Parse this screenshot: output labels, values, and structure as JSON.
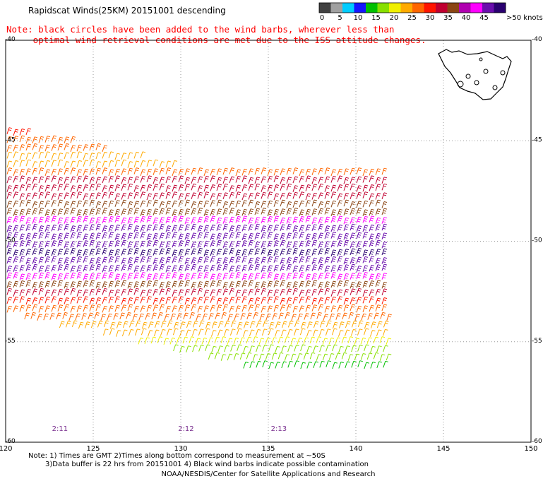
{
  "header": {
    "title": "Rapidscat Winds(25KM) 20151001 descending",
    "note_line1": "Note: black circles have been added to the wind barbs, wherever less than",
    "note_line2": "     optimal wind retrieval conditions are met due to the ISS attitude changes."
  },
  "legend": {
    "unit_label": ">50 knots",
    "ticks": [
      "0",
      "5",
      "10",
      "15",
      "20",
      "25",
      "30",
      "35",
      "40",
      "45"
    ],
    "colors": [
      "#404040",
      "#a0a0a0",
      "#00ccff",
      "#1515ff",
      "#00c000",
      "#88e000",
      "#f0f000",
      "#ffaa00",
      "#ff6600",
      "#ff1500",
      "#c00030",
      "#8b4513",
      "#b000b0",
      "#ff00ff",
      "#6a0dad",
      "#2a0070"
    ]
  },
  "footer": {
    "note_line1": "Note: 1) Times are GMT 2)Times along bottom correspond to measurement at ~50S",
    "note_line2": "3)Data buffer is 22 hrs from 20151001 4) Black wind barbs indicate possible contamination",
    "credit": "NOAA/NESDIS/Center for Satellite Applications and Research"
  },
  "chart_data": {
    "type": "scatter",
    "title": "Rapidscat Winds(25KM) 20151001 descending",
    "xlabel": "",
    "ylabel": "",
    "xlim": [
      120,
      150
    ],
    "ylim": [
      -60,
      -40
    ],
    "x_ticks": [
      "120",
      "125",
      "130",
      "135",
      "140",
      "145",
      "150"
    ],
    "y_ticks": [
      "-40",
      "-45",
      "-50",
      "-55",
      "-60"
    ],
    "grid": "dotted",
    "time_labels": [
      {
        "text": "2:11",
        "x": 123.1
      },
      {
        "text": "2:12",
        "x": 130.3
      },
      {
        "text": "2:13",
        "x": 135.6
      }
    ],
    "color_scale_knots": [
      0,
      5,
      10,
      15,
      20,
      25,
      30,
      35,
      40,
      45,
      50
    ],
    "swath_bands": [
      {
        "lat": -44.6,
        "lon_start": 120.0,
        "lon_end": 121.5,
        "speed": 30
      },
      {
        "lat": -45.0,
        "lon_start": 120.0,
        "lon_end": 124.0,
        "speed": 25
      },
      {
        "lat": -45.4,
        "lon_start": 120.0,
        "lon_end": 126.0,
        "speed": 25
      },
      {
        "lat": -45.8,
        "lon_start": 120.0,
        "lon_end": 128.0,
        "speed": 22
      },
      {
        "lat": -46.2,
        "lon_start": 120.0,
        "lon_end": 129.8,
        "speed": 22
      },
      {
        "lat": -46.6,
        "lon_start": 120.0,
        "lon_end": 142.0,
        "speed": 28
      },
      {
        "lat": -47.0,
        "lon_start": 120.0,
        "lon_end": 142.0,
        "speed": 33
      },
      {
        "lat": -47.4,
        "lon_start": 120.0,
        "lon_end": 142.0,
        "speed": 34
      },
      {
        "lat": -47.8,
        "lon_start": 120.0,
        "lon_end": 142.0,
        "speed": 34
      },
      {
        "lat": -48.2,
        "lon_start": 120.0,
        "lon_end": 142.0,
        "speed": 36
      },
      {
        "lat": -48.6,
        "lon_start": 120.0,
        "lon_end": 142.0,
        "speed": 38
      },
      {
        "lat": -49.0,
        "lon_start": 120.0,
        "lon_end": 142.0,
        "speed": 42
      },
      {
        "lat": -49.4,
        "lon_start": 120.0,
        "lon_end": 142.0,
        "speed": 46
      },
      {
        "lat": -49.8,
        "lon_start": 120.0,
        "lon_end": 142.0,
        "speed": 46
      },
      {
        "lat": -50.2,
        "lon_start": 120.0,
        "lon_end": 142.0,
        "speed": 48
      },
      {
        "lat": -50.6,
        "lon_start": 120.0,
        "lon_end": 142.0,
        "speed": 50
      },
      {
        "lat": -51.0,
        "lon_start": 120.0,
        "lon_end": 142.0,
        "speed": 48
      },
      {
        "lat": -51.4,
        "lon_start": 120.0,
        "lon_end": 142.0,
        "speed": 46
      },
      {
        "lat": -51.8,
        "lon_start": 120.0,
        "lon_end": 142.0,
        "speed": 42
      },
      {
        "lat": -52.2,
        "lon_start": 120.0,
        "lon_end": 142.0,
        "speed": 38
      },
      {
        "lat": -52.6,
        "lon_start": 120.0,
        "lon_end": 142.0,
        "speed": 34
      },
      {
        "lat": -53.0,
        "lon_start": 120.0,
        "lon_end": 142.0,
        "speed": 30
      },
      {
        "lat": -53.4,
        "lon_start": 120.0,
        "lon_end": 142.0,
        "speed": 28
      },
      {
        "lat": -53.8,
        "lon_start": 121.0,
        "lon_end": 142.0,
        "speed": 26
      },
      {
        "lat": -54.2,
        "lon_start": 123.0,
        "lon_end": 142.0,
        "speed": 24
      },
      {
        "lat": -54.6,
        "lon_start": 125.5,
        "lon_end": 142.0,
        "speed": 22
      },
      {
        "lat": -55.0,
        "lon_start": 127.5,
        "lon_end": 142.0,
        "speed": 20
      },
      {
        "lat": -55.4,
        "lon_start": 129.5,
        "lon_end": 142.0,
        "speed": 18
      },
      {
        "lat": -55.8,
        "lon_start": 131.5,
        "lon_end": 142.0,
        "speed": 16
      },
      {
        "lat": -56.2,
        "lon_start": 133.5,
        "lon_end": 142.0,
        "speed": 14
      }
    ]
  }
}
